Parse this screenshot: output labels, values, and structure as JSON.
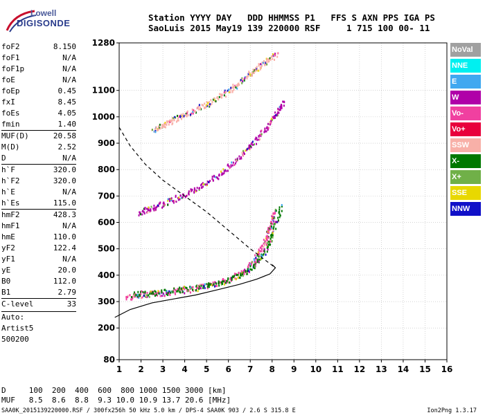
{
  "logo": {
    "line1": "Lowell",
    "line2": "DIGISONDE"
  },
  "header": {
    "line1": "Station YYYY DAY   DDD HHMMSS P1   FFS S AXN PPS IGA PS",
    "line2": "SaoLuis 2015 May19 139 220000 RSF     1 715 100 00- 11"
  },
  "params": [
    {
      "k": "foF2",
      "v": "8.150"
    },
    {
      "k": "foF1",
      "v": "N/A"
    },
    {
      "k": "foF1p",
      "v": "N/A"
    },
    {
      "k": "foE",
      "v": "N/A"
    },
    {
      "k": "foEp",
      "v": "0.45"
    },
    {
      "k": "fxI",
      "v": "8.45"
    },
    {
      "k": "foEs",
      "v": "4.05"
    },
    {
      "k": "fmin",
      "v": "1.40"
    },
    {
      "k": "MUF(D)",
      "v": "20.58",
      "sep": true
    },
    {
      "k": "M(D)",
      "v": "2.52"
    },
    {
      "k": "D",
      "v": "N/A"
    },
    {
      "k": "h`F",
      "v": "320.0",
      "sep": true
    },
    {
      "k": "h`F2",
      "v": "320.0"
    },
    {
      "k": "h`E",
      "v": "N/A"
    },
    {
      "k": "h`Es",
      "v": "115.0"
    },
    {
      "k": "hmF2",
      "v": "428.3",
      "sep": true
    },
    {
      "k": "hmF1",
      "v": "N/A"
    },
    {
      "k": "hmE",
      "v": "110.0"
    },
    {
      "k": "yF2",
      "v": "122.4"
    },
    {
      "k": "yF1",
      "v": "N/A"
    },
    {
      "k": "yE",
      "v": "20.0"
    },
    {
      "k": "B0",
      "v": "112.0"
    },
    {
      "k": "B1",
      "v": "2.79"
    },
    {
      "k": "C-level",
      "v": "33",
      "sep": true
    }
  ],
  "notes": [
    "Auto:",
    "Artist5",
    "500200"
  ],
  "legend": [
    {
      "label": "NoVal",
      "color": "#a0a0a0"
    },
    {
      "label": "NNE",
      "color": "#00f0f0"
    },
    {
      "label": "E",
      "color": "#40a8f0"
    },
    {
      "label": "W",
      "color": "#b000a8"
    },
    {
      "label": "Vo-",
      "color": "#f040a0"
    },
    {
      "label": "Vo+",
      "color": "#e8003c"
    },
    {
      "label": "SSW",
      "color": "#f8b0a8"
    },
    {
      "label": "X-",
      "color": "#007800"
    },
    {
      "label": "X+",
      "color": "#70b048"
    },
    {
      "label": "SSE",
      "color": "#e8d800"
    },
    {
      "label": "NNW",
      "color": "#1010c8"
    }
  ],
  "footer": {
    "line1": "D     100  200  400  600  800 1000 1500 3000 [km]",
    "line2": "MUF   8.5  8.6  8.8  9.3 10.0 10.9 13.7 20.6 [MHz]",
    "line3": "SAA0K_2015139220000.RSF / 300fx256h 50 kHz 5.0 km / DPS-4 SAA0K 903 / 2.6 S 315.8 E",
    "version": "Ion2Png 1.3.17"
  },
  "chart_data": {
    "type": "scatter",
    "xlim": [
      1,
      16
    ],
    "ylim": [
      80,
      1280
    ],
    "x_ticks": [
      1,
      2,
      3,
      4,
      5,
      6,
      7,
      8,
      9,
      10,
      11,
      12,
      13,
      14,
      15,
      16
    ],
    "y_ticks": [
      80,
      200,
      300,
      400,
      500,
      600,
      700,
      800,
      900,
      1000,
      1100,
      1280
    ],
    "x_unit": "MHz",
    "y_unit": "km",
    "traces": [
      {
        "name": "O-trace",
        "color": "#f040a0",
        "points": [
          [
            1.3,
            320
          ],
          [
            2,
            325
          ],
          [
            3,
            335
          ],
          [
            4,
            345
          ],
          [
            5,
            360
          ],
          [
            6,
            385
          ],
          [
            6.8,
            420
          ],
          [
            7.3,
            480
          ],
          [
            7.7,
            540
          ],
          [
            7.95,
            600
          ],
          [
            8.1,
            650
          ]
        ]
      },
      {
        "name": "X-trace",
        "color": "#007800",
        "points": [
          [
            1.6,
            330
          ],
          [
            2.5,
            335
          ],
          [
            3.5,
            345
          ],
          [
            4.5,
            355
          ],
          [
            5.5,
            370
          ],
          [
            6.5,
            400
          ],
          [
            7.2,
            440
          ],
          [
            7.7,
            500
          ],
          [
            8.0,
            560
          ],
          [
            8.4,
            660
          ]
        ]
      },
      {
        "name": "2nd-hop",
        "color": "#b000a8",
        "points": [
          [
            1.9,
            640
          ],
          [
            2.6,
            660
          ],
          [
            3.5,
            690
          ],
          [
            4.5,
            730
          ],
          [
            5.5,
            780
          ],
          [
            6.5,
            850
          ],
          [
            7.3,
            920
          ],
          [
            8.0,
            990
          ],
          [
            8.5,
            1060
          ]
        ]
      },
      {
        "name": "3rd-hop",
        "color": "#f8b0a8",
        "points": [
          [
            2.5,
            950
          ],
          [
            3.2,
            980
          ],
          [
            4.0,
            1010
          ],
          [
            5.0,
            1050
          ],
          [
            6.0,
            1100
          ],
          [
            6.9,
            1160
          ],
          [
            7.5,
            1200
          ],
          [
            8.2,
            1240
          ]
        ]
      }
    ],
    "profile": [
      [
        0.8,
        240
      ],
      [
        1.5,
        270
      ],
      [
        2.5,
        295
      ],
      [
        3.5,
        310
      ],
      [
        4.5,
        325
      ],
      [
        5.5,
        345
      ],
      [
        6.5,
        365
      ],
      [
        7.3,
        385
      ],
      [
        7.9,
        405
      ],
      [
        8.15,
        428
      ],
      [
        8.0,
        440
      ]
    ],
    "dashed_profile": [
      [
        1.0,
        960
      ],
      [
        1.5,
        890
      ],
      [
        2.2,
        820
      ],
      [
        3.0,
        760
      ],
      [
        4.0,
        700
      ],
      [
        5.0,
        640
      ],
      [
        6.0,
        570
      ],
      [
        7.0,
        500
      ],
      [
        7.8,
        450
      ],
      [
        8.15,
        428
      ]
    ]
  }
}
